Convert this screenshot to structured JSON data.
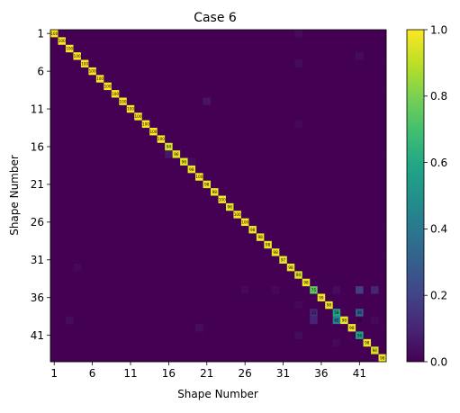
{
  "chart_data": {
    "type": "heatmap",
    "title": "Case 6",
    "xlabel": "Shape Number",
    "ylabel": "Shape Number",
    "n": 44,
    "x_ticks": [
      1,
      6,
      11,
      16,
      21,
      26,
      31,
      36,
      41
    ],
    "y_ticks": [
      1,
      6,
      11,
      16,
      21,
      26,
      31,
      36,
      41
    ],
    "colorbar": {
      "min": 0.0,
      "max": 1.0,
      "ticks": [
        "0.0",
        "0.2",
        "0.4",
        "0.6",
        "0.8",
        "1.0"
      ],
      "colormap": "viridis"
    },
    "diagonal_values": [
      1.0,
      1.0,
      1.0,
      1.0,
      1.0,
      1.0,
      1.0,
      1.0,
      1.0,
      1.0,
      1.0,
      1.0,
      1.0,
      1.0,
      1.0,
      0.94,
      0.96,
      0.96,
      0.98,
      1.0,
      0.98,
      0.98,
      1.0,
      0.96,
      1.0,
      1.0,
      0.98,
      0.98,
      0.98,
      0.98,
      0.97,
      0.98,
      0.94,
      0.98,
      0.75,
      0.99,
      0.98,
      0.58,
      0.98,
      0.98,
      0.56,
      0.98,
      0.94,
      0.98
    ],
    "diagonal_labels": [
      "100",
      "100",
      "100",
      "100",
      "100",
      "100",
      "100",
      "100",
      "100",
      "100",
      "100",
      "100",
      "100",
      "100",
      "100",
      "94",
      "96",
      "96",
      "98",
      "100",
      "98",
      "98",
      "100",
      "96",
      "100",
      "100",
      "98",
      "98",
      "98",
      "98",
      "97",
      "98",
      "94",
      "98",
      "75",
      "99",
      "98",
      "58",
      "98",
      "98",
      "56",
      "98",
      "94",
      "98"
    ],
    "off_diagonal": [
      {
        "row": 17,
        "col": 16,
        "value": 0.06
      },
      {
        "row": 35,
        "col": 41,
        "value": 0.18
      },
      {
        "row": 35,
        "col": 43,
        "value": 0.1
      },
      {
        "row": 38,
        "col": 35,
        "value": 0.12
      },
      {
        "row": 38,
        "col": 41,
        "value": 0.3
      },
      {
        "row": 39,
        "col": 35,
        "value": 0.1
      },
      {
        "row": 39,
        "col": 38,
        "value": 0.42
      },
      {
        "row": 10,
        "col": 21,
        "value": 0.05
      },
      {
        "row": 1,
        "col": 33,
        "value": 0.03
      },
      {
        "row": 5,
        "col": 33,
        "value": 0.03
      },
      {
        "row": 4,
        "col": 41,
        "value": 0.03
      },
      {
        "row": 13,
        "col": 33,
        "value": 0.02
      },
      {
        "row": 18,
        "col": 19,
        "value": 0.03
      },
      {
        "row": 32,
        "col": 4,
        "value": 0.02
      },
      {
        "row": 39,
        "col": 3,
        "value": 0.03
      },
      {
        "row": 35,
        "col": 26,
        "value": 0.02
      },
      {
        "row": 35,
        "col": 30,
        "value": 0.02
      },
      {
        "row": 35,
        "col": 38,
        "value": 0.03
      },
      {
        "row": 37,
        "col": 33,
        "value": 0.02
      },
      {
        "row": 39,
        "col": 43,
        "value": 0.02
      },
      {
        "row": 40,
        "col": 20,
        "value": 0.03
      },
      {
        "row": 41,
        "col": 33,
        "value": 0.03
      },
      {
        "row": 42,
        "col": 38,
        "value": 0.02
      }
    ],
    "cell_labels": [
      {
        "row": 38,
        "col": 35,
        "label": "12"
      },
      {
        "row": 38,
        "col": 41,
        "label": "30"
      },
      {
        "row": 39,
        "col": 38,
        "label": "42"
      },
      {
        "row": 39,
        "col": 41,
        "label": "36"
      }
    ]
  }
}
